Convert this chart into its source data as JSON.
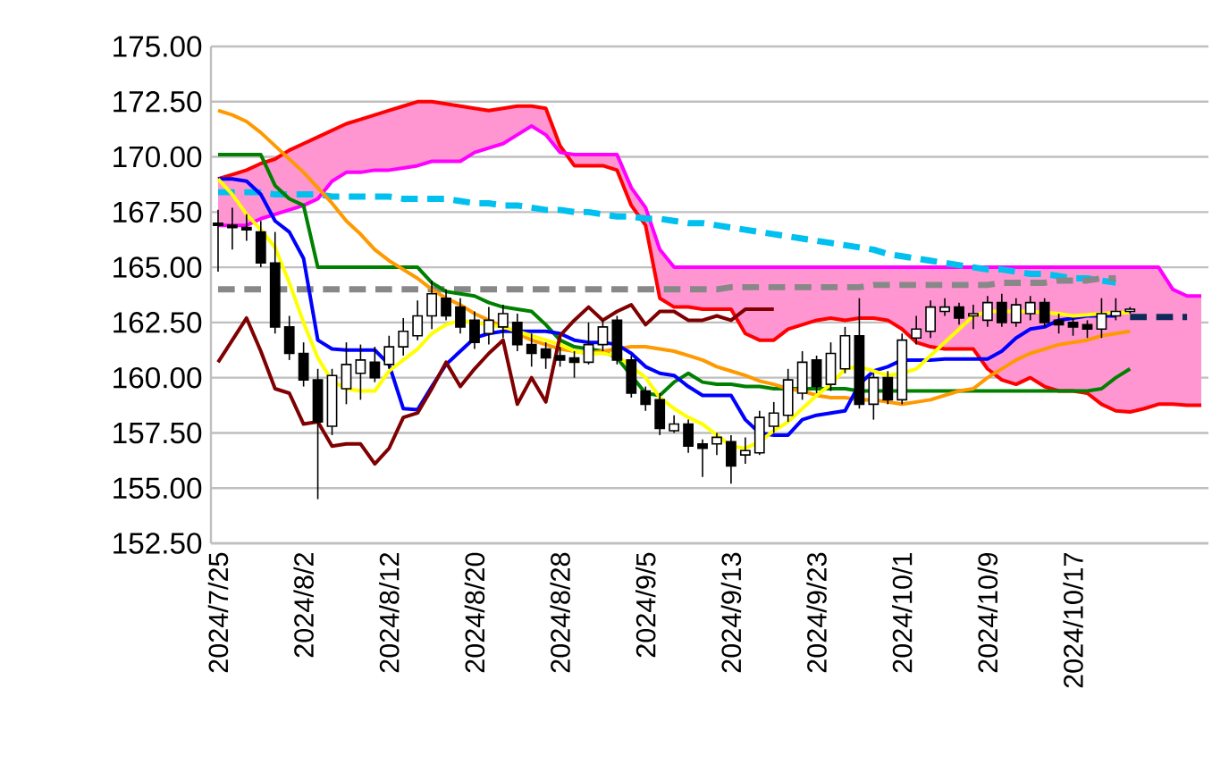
{
  "chart_data": {
    "type": "candlestick",
    "categories": [
      "2024/7/25",
      null,
      null,
      null,
      null,
      null,
      "2024/8/2",
      null,
      null,
      null,
      null,
      null,
      "2024/8/12",
      null,
      null,
      null,
      null,
      null,
      "2024/8/20",
      null,
      null,
      null,
      null,
      null,
      "2024/8/28",
      null,
      null,
      null,
      null,
      null,
      "2024/9/5",
      null,
      null,
      null,
      null,
      null,
      "2024/9/13",
      null,
      null,
      null,
      null,
      null,
      "2024/9/23",
      null,
      null,
      null,
      null,
      null,
      "2024/10/1",
      null,
      null,
      null,
      null,
      null,
      "2024/10/9",
      null,
      null,
      null,
      null,
      null,
      "2024/10/17",
      null,
      null,
      null,
      null,
      null,
      null,
      null,
      null,
      null
    ],
    "ohlc": [
      [
        167.0,
        167.6,
        164.8,
        166.9
      ],
      [
        166.9,
        167.7,
        165.8,
        166.8
      ],
      [
        166.8,
        167.4,
        166.2,
        166.7
      ],
      [
        166.6,
        167.1,
        165.0,
        165.2
      ],
      [
        165.2,
        166.6,
        162.0,
        162.3
      ],
      [
        162.3,
        162.8,
        160.8,
        161.1
      ],
      [
        161.1,
        161.6,
        159.6,
        159.9
      ],
      [
        159.9,
        160.4,
        154.5,
        158.0
      ],
      [
        157.8,
        160.4,
        157.4,
        160.1
      ],
      [
        159.5,
        161.6,
        158.8,
        160.6
      ],
      [
        160.2,
        161.5,
        159.0,
        160.8
      ],
      [
        160.7,
        161.4,
        159.8,
        160.0
      ],
      [
        160.6,
        161.9,
        160.4,
        161.4
      ],
      [
        161.4,
        162.7,
        161.0,
        162.1
      ],
      [
        161.9,
        163.5,
        161.7,
        162.8
      ],
      [
        162.8,
        164.4,
        162.2,
        163.8
      ],
      [
        163.6,
        164.0,
        162.6,
        162.8
      ],
      [
        163.2,
        163.6,
        162.0,
        162.3
      ],
      [
        162.6,
        163.0,
        161.3,
        161.6
      ],
      [
        162.0,
        163.2,
        161.5,
        162.6
      ],
      [
        162.3,
        163.3,
        161.8,
        162.9
      ],
      [
        162.5,
        162.9,
        161.2,
        161.5
      ],
      [
        161.5,
        162.0,
        160.5,
        161.1
      ],
      [
        161.3,
        161.6,
        160.4,
        160.9
      ],
      [
        161.0,
        161.4,
        160.5,
        160.8
      ],
      [
        160.9,
        161.2,
        160.0,
        160.7
      ],
      [
        160.7,
        162.5,
        160.6,
        161.5
      ],
      [
        161.5,
        162.6,
        161.2,
        162.3
      ],
      [
        162.6,
        162.8,
        160.6,
        160.8
      ],
      [
        160.8,
        161.0,
        159.1,
        159.3
      ],
      [
        159.4,
        159.6,
        158.5,
        158.8
      ],
      [
        159.0,
        159.3,
        157.4,
        157.7
      ],
      [
        157.6,
        158.3,
        157.5,
        157.9
      ],
      [
        157.9,
        158.1,
        156.6,
        156.9
      ],
      [
        157.0,
        157.2,
        155.5,
        156.8
      ],
      [
        157.0,
        157.5,
        156.5,
        157.3
      ],
      [
        157.1,
        157.4,
        155.2,
        156.0
      ],
      [
        156.5,
        157.3,
        156.1,
        156.7
      ],
      [
        156.6,
        158.5,
        156.5,
        158.2
      ],
      [
        157.8,
        158.9,
        157.5,
        158.4
      ],
      [
        158.3,
        160.4,
        158.0,
        159.9
      ],
      [
        159.3,
        161.2,
        159.0,
        160.7
      ],
      [
        160.8,
        161.0,
        159.3,
        159.6
      ],
      [
        159.7,
        161.6,
        159.4,
        161.1
      ],
      [
        160.4,
        162.3,
        160.2,
        161.9
      ],
      [
        161.9,
        163.6,
        158.6,
        158.8
      ],
      [
        158.8,
        160.2,
        158.1,
        160.0
      ],
      [
        160.0,
        160.3,
        158.8,
        159.0
      ],
      [
        159.0,
        162.0,
        158.8,
        161.7
      ],
      [
        161.8,
        162.8,
        161.5,
        162.2
      ],
      [
        162.1,
        163.5,
        161.8,
        163.2
      ],
      [
        163.0,
        163.6,
        162.8,
        163.2
      ],
      [
        163.2,
        163.4,
        162.4,
        162.7
      ],
      [
        162.8,
        163.3,
        162.2,
        162.9
      ],
      [
        162.6,
        163.7,
        162.3,
        163.4
      ],
      [
        163.4,
        163.8,
        162.3,
        162.5
      ],
      [
        162.5,
        163.6,
        162.3,
        163.3
      ],
      [
        162.9,
        163.7,
        162.6,
        163.4
      ],
      [
        163.4,
        163.6,
        162.3,
        162.5
      ],
      [
        162.6,
        162.9,
        162.0,
        162.4
      ],
      [
        162.5,
        162.7,
        161.9,
        162.3
      ],
      [
        162.4,
        162.6,
        161.8,
        162.2
      ],
      [
        162.2,
        163.6,
        161.8,
        162.9
      ],
      [
        162.8,
        163.6,
        162.6,
        163.0
      ],
      [
        163.0,
        163.2,
        162.9,
        163.1
      ],
      null,
      null,
      null,
      null,
      null
    ],
    "series": [
      {
        "type": "line",
        "color": "#ff0000",
        "values": [
          169.0,
          169.2,
          169.4,
          169.7,
          169.9,
          170.3,
          170.6,
          170.9,
          171.2,
          171.5,
          171.7,
          171.9,
          172.1,
          172.3,
          172.5,
          172.5,
          172.4,
          172.3,
          172.2,
          172.1,
          172.2,
          172.3,
          172.3,
          172.2,
          170.5,
          169.6,
          169.6,
          169.6,
          169.4,
          167.8,
          166.9,
          163.6,
          163.2,
          163.2,
          163.1,
          163.1,
          163.1,
          162.0,
          161.7,
          161.7,
          162.2,
          162.4,
          162.6,
          162.7,
          162.6,
          162.7,
          162.7,
          162.6,
          162.2,
          161.6,
          161.4,
          161.3,
          161.3,
          161.3,
          160.4,
          159.9,
          159.7,
          160.0,
          159.6,
          159.4,
          159.4,
          159.3,
          158.8,
          158.5,
          158.45,
          158.6,
          158.8,
          158.8,
          158.75,
          158.75
        ]
      },
      {
        "type": "line",
        "color": "#ff00ff",
        "values": [
          166.9,
          166.9,
          166.9,
          167.2,
          167.4,
          167.6,
          167.8,
          168.1,
          168.9,
          169.3,
          169.3,
          169.4,
          169.4,
          169.5,
          169.6,
          169.8,
          169.8,
          169.8,
          170.2,
          170.4,
          170.6,
          171.0,
          171.4,
          171.0,
          170.2,
          170.1,
          170.1,
          170.1,
          170.1,
          168.6,
          167.7,
          165.8,
          165.0,
          165.0,
          165.0,
          165.0,
          165.0,
          165.0,
          165.0,
          165.0,
          165.0,
          165.0,
          165.0,
          165.0,
          165.0,
          165.0,
          165.0,
          165.0,
          165.0,
          165.0,
          165.0,
          165.0,
          165.0,
          165.0,
          165.0,
          165.0,
          165.0,
          165.0,
          165.0,
          165.0,
          165.0,
          165.0,
          165.0,
          165.0,
          165.0,
          165.0,
          165.0,
          164.0,
          163.7,
          163.7
        ]
      },
      {
        "type": "line",
        "color": "#00c0f0",
        "line_style": "dashed",
        "values": [
          168.4,
          168.4,
          168.4,
          168.4,
          168.3,
          168.3,
          168.3,
          168.3,
          168.2,
          168.2,
          168.2,
          168.2,
          168.2,
          168.1,
          168.1,
          168.1,
          168.1,
          168.0,
          167.9,
          167.9,
          167.8,
          167.8,
          167.7,
          167.6,
          167.6,
          167.5,
          167.5,
          167.4,
          167.3,
          167.3,
          167.2,
          167.2,
          167.1,
          167.0,
          167.0,
          166.9,
          166.8,
          166.7,
          166.6,
          166.5,
          166.4,
          166.3,
          166.2,
          166.1,
          166.0,
          165.9,
          165.8,
          165.6,
          165.5,
          165.4,
          165.3,
          165.2,
          165.1,
          165.0,
          164.9,
          164.9,
          164.8,
          164.7,
          164.7,
          164.6,
          164.5,
          164.5,
          164.4,
          164.3,
          null,
          null,
          null,
          null,
          null,
          null
        ]
      },
      {
        "type": "line",
        "color": "#888888",
        "line_style": "dashed",
        "values": [
          164.0,
          164.0,
          164.0,
          164.0,
          164.0,
          164.0,
          164.0,
          164.0,
          164.0,
          164.0,
          164.0,
          164.0,
          164.0,
          164.0,
          164.0,
          164.0,
          164.0,
          164.0,
          164.0,
          164.0,
          164.0,
          164.0,
          164.0,
          164.0,
          164.0,
          164.0,
          164.0,
          164.0,
          164.0,
          164.0,
          164.0,
          164.0,
          164.0,
          164.0,
          164.0,
          164.0,
          164.1,
          164.1,
          164.1,
          164.1,
          164.1,
          164.1,
          164.1,
          164.1,
          164.1,
          164.1,
          164.2,
          164.2,
          164.2,
          164.2,
          164.2,
          164.2,
          164.2,
          164.2,
          164.2,
          164.3,
          164.3,
          164.3,
          164.3,
          164.4,
          164.4,
          164.4,
          164.5,
          164.5,
          null,
          null,
          null,
          null,
          null,
          null
        ]
      },
      {
        "type": "line",
        "color": "#008000",
        "values": [
          170.1,
          170.1,
          170.1,
          170.1,
          168.7,
          168.1,
          167.8,
          165.0,
          165.0,
          165.0,
          165.0,
          165.0,
          165.0,
          165.0,
          165.0,
          164.3,
          163.9,
          163.8,
          163.7,
          163.4,
          163.2,
          163.1,
          163.0,
          162.4,
          161.7,
          161.4,
          161.3,
          161.2,
          160.9,
          160.1,
          159.3,
          159.2,
          159.8,
          160.2,
          159.8,
          159.7,
          159.7,
          159.6,
          159.6,
          159.5,
          159.5,
          159.5,
          159.5,
          159.5,
          159.5,
          159.4,
          159.4,
          159.4,
          159.4,
          159.4,
          159.4,
          159.4,
          159.4,
          159.4,
          159.4,
          159.4,
          159.4,
          159.4,
          159.4,
          159.4,
          159.4,
          159.4,
          159.5,
          160.0,
          160.4,
          null,
          null,
          null,
          null,
          null
        ]
      },
      {
        "type": "line",
        "color": "#ff9900",
        "values": [
          172.1,
          171.9,
          171.6,
          171.1,
          170.5,
          169.9,
          169.3,
          168.6,
          167.9,
          167.1,
          166.5,
          165.8,
          165.3,
          164.9,
          164.5,
          164.0,
          163.6,
          163.3,
          162.9,
          162.6,
          162.3,
          162.0,
          161.7,
          161.5,
          161.3,
          161.2,
          161.1,
          161.2,
          161.3,
          161.4,
          161.4,
          161.3,
          161.2,
          161.0,
          160.8,
          160.5,
          160.3,
          160.1,
          159.85,
          159.7,
          159.5,
          159.4,
          159.2,
          159.1,
          159.1,
          159.0,
          159.0,
          158.9,
          158.8,
          158.9,
          159.0,
          159.2,
          159.4,
          159.5,
          160.0,
          160.4,
          160.8,
          161.1,
          161.3,
          161.5,
          161.6,
          161.7,
          161.9,
          162.0,
          162.1,
          null,
          null,
          null,
          null,
          null
        ]
      },
      {
        "type": "line",
        "color": "#0000ff",
        "values": [
          169.0,
          169.0,
          168.9,
          168.3,
          167.1,
          166.6,
          165.4,
          161.7,
          161.3,
          161.25,
          161.25,
          161.25,
          160.6,
          158.6,
          158.55,
          159.6,
          160.6,
          161.2,
          161.8,
          162.0,
          162.1,
          162.1,
          162.1,
          162.1,
          162.0,
          161.7,
          161.6,
          161.6,
          161.5,
          161.1,
          160.5,
          160.2,
          160.1,
          159.6,
          159.2,
          159.2,
          159.2,
          158.1,
          157.5,
          157.4,
          157.4,
          158.1,
          158.3,
          158.4,
          158.5,
          159.7,
          160.3,
          160.5,
          160.8,
          160.8,
          160.8,
          160.85,
          160.85,
          160.85,
          160.85,
          161.2,
          161.8,
          162.2,
          162.3,
          162.6,
          162.7,
          162.8,
          162.8,
          162.8,
          null,
          null,
          null,
          null,
          null,
          null
        ]
      },
      {
        "type": "line",
        "color": "#ffff00",
        "values": [
          169.0,
          168.3,
          167.4,
          166.7,
          165.9,
          164.3,
          162.5,
          160.9,
          159.85,
          159.5,
          159.4,
          159.4,
          160.3,
          160.8,
          161.3,
          162.0,
          162.4,
          162.6,
          162.5,
          162.4,
          162.3,
          162.1,
          161.9,
          161.7,
          161.5,
          161.2,
          161.1,
          161.1,
          161.0,
          160.5,
          160.0,
          159.1,
          158.6,
          158.2,
          157.9,
          157.4,
          156.9,
          156.8,
          157.1,
          157.6,
          158.0,
          158.6,
          159.2,
          159.7,
          160.4,
          160.5,
          160.3,
          160.1,
          160.2,
          160.4,
          161.0,
          161.6,
          162.2,
          162.8,
          163.0,
          163.0,
          163.0,
          163.0,
          162.95,
          162.9,
          162.8,
          162.85,
          162.9,
          162.95,
          162.95,
          null,
          null,
          null,
          null,
          null
        ]
      },
      {
        "type": "line",
        "color": "#7f0000",
        "values": [
          160.7,
          161.7,
          162.7,
          161.2,
          159.5,
          159.3,
          157.9,
          158.0,
          156.9,
          157.0,
          157.0,
          156.1,
          156.8,
          158.2,
          158.4,
          159.5,
          160.7,
          159.6,
          160.4,
          161.1,
          161.7,
          158.8,
          160.0,
          158.9,
          161.9,
          162.6,
          163.2,
          162.6,
          163.0,
          163.3,
          162.4,
          163.0,
          163.0,
          162.6,
          162.6,
          162.8,
          162.6,
          163.1,
          163.1,
          163.1,
          null,
          null,
          null,
          null,
          null,
          null,
          null,
          null,
          null,
          null,
          null,
          null,
          null,
          null,
          null,
          null,
          null,
          null,
          null,
          null,
          null,
          null,
          null,
          null,
          null,
          null,
          null,
          null,
          null,
          null
        ]
      },
      {
        "type": "line",
        "color": "#0d2a5a",
        "line_style": "dashed",
        "values": [
          null,
          null,
          null,
          null,
          null,
          null,
          null,
          null,
          null,
          null,
          null,
          null,
          null,
          null,
          null,
          null,
          null,
          null,
          null,
          null,
          null,
          null,
          null,
          null,
          null,
          null,
          null,
          null,
          null,
          null,
          null,
          null,
          null,
          null,
          null,
          null,
          null,
          null,
          null,
          null,
          null,
          null,
          null,
          null,
          null,
          null,
          null,
          null,
          null,
          null,
          null,
          null,
          null,
          null,
          null,
          null,
          null,
          null,
          null,
          null,
          null,
          null,
          null,
          null,
          162.75,
          162.75,
          162.75,
          162.75,
          162.75,
          null
        ]
      }
    ],
    "ylim": [
      152.5,
      175
    ],
    "yticks": [
      {
        "value": 152.5,
        "label": "152.50"
      },
      {
        "value": 155,
        "label": "155.00"
      },
      {
        "value": 157.5,
        "label": "157.50"
      },
      {
        "value": 160,
        "label": "160.00"
      },
      {
        "value": 162.5,
        "label": "162.50"
      },
      {
        "value": 165,
        "label": "165.00"
      },
      {
        "value": 167.5,
        "label": "167.50"
      },
      {
        "value": 170,
        "label": "170.00"
      },
      {
        "value": 172.5,
        "label": "172.50"
      },
      {
        "value": 175,
        "label": "175.00"
      }
    ],
    "grid": "y"
  }
}
